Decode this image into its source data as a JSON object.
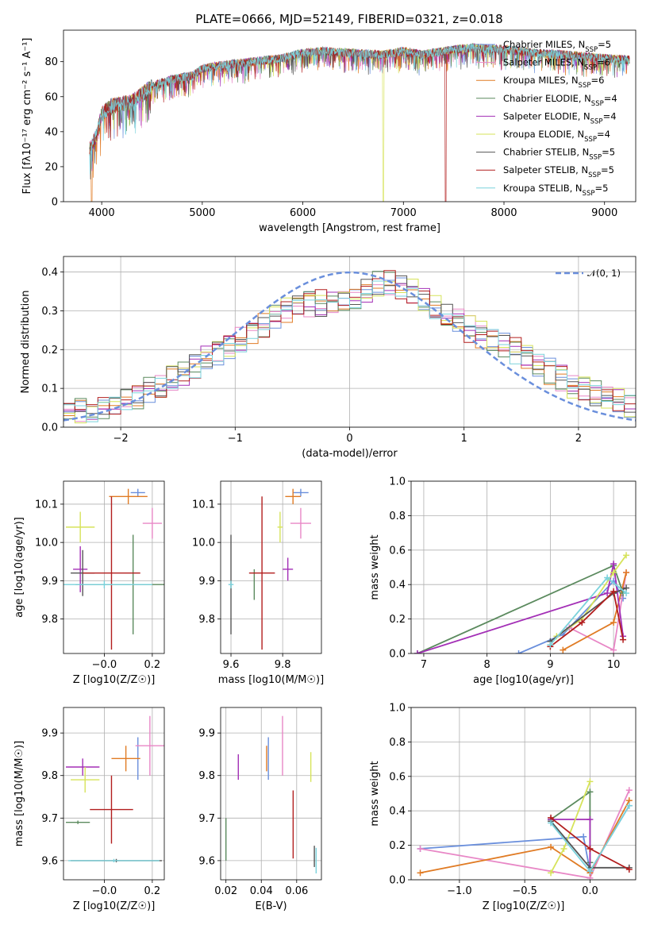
{
  "figure_title": "PLATE=0666, MJD=52149, FIBERID=0321, z=0.018",
  "colors": {
    "Chabrier MILES": "#6a8fdc",
    "Salpeter MILES": "#e887c6",
    "Kroupa MILES": "#e07b24",
    "Chabrier ELODIE": "#5b8a5e",
    "Salpeter ELODIE": "#a32fb6",
    "Kroupa ELODIE": "#d6e35a",
    "Chabrier STELIB": "#555555",
    "Salpeter STELIB": "#b21e1e",
    "Kroupa STELIB": "#7ad2dc"
  },
  "chart_data": [
    {
      "id": "spectrum",
      "type": "line",
      "title": "PLATE=0666, MJD=52149, FIBERID=0321, z=0.018",
      "xlabel": "wavelength [Angstrom, rest frame]",
      "ylabel": "Flux [f_λ 10^-17 erg cm^-2 s^-1 A^-1]",
      "xlim": [
        3620,
        9310
      ],
      "ylim": [
        0,
        98
      ],
      "xticks": [
        "4000",
        "5000",
        "6000",
        "7000",
        "8000",
        "9000"
      ],
      "yticks": [
        "0",
        "20",
        "40",
        "60",
        "80"
      ],
      "grid": false,
      "legend": "right",
      "legend_entries": [
        "Chabrier MILES, N_SSP=5",
        "Salpeter MILES, N_SSP=6",
        "Kroupa MILES, N_SSP=6",
        "Chabrier ELODIE, N_SSP=4",
        "Salpeter ELODIE, N_SSP=4",
        "Kroupa ELODIE, N_SSP=4",
        "Chabrier STELIB, N_SSP=5",
        "Salpeter STELIB, N_SSP=5",
        "Kroupa STELIB, N_SSP=5"
      ],
      "continuum_knots": [
        [
          3880,
          30
        ],
        [
          3950,
          38
        ],
        [
          4000,
          50
        ],
        [
          4100,
          55
        ],
        [
          4300,
          57
        ],
        [
          4500,
          66
        ],
        [
          4700,
          70
        ],
        [
          4900,
          72
        ],
        [
          5000,
          76
        ],
        [
          5200,
          78
        ],
        [
          5500,
          80
        ],
        [
          5800,
          82
        ],
        [
          6000,
          85
        ],
        [
          6200,
          86
        ],
        [
          6500,
          85
        ],
        [
          6800,
          84
        ],
        [
          7000,
          86
        ],
        [
          7200,
          84
        ],
        [
          7500,
          87
        ],
        [
          7700,
          88
        ],
        [
          8000,
          87
        ],
        [
          8300,
          85
        ],
        [
          8600,
          84
        ],
        [
          9000,
          82
        ],
        [
          9250,
          81
        ]
      ],
      "drop_features": [
        {
          "model": "Kroupa ELODIE",
          "x": 6800
        },
        {
          "model": "Salpeter STELIB",
          "x": 7420
        },
        {
          "model": "Kroupa MILES",
          "x": 3900
        }
      ]
    },
    {
      "id": "residuals",
      "type": "line",
      "xlabel": "(data-model)/error",
      "ylabel": "Normed distribution",
      "xlim": [
        -2.5,
        2.5
      ],
      "ylim": [
        0,
        0.44
      ],
      "xticks": [
        "−2",
        "−1",
        "0",
        "1",
        "2"
      ],
      "yticks": [
        "0.0",
        "0.1",
        "0.2",
        "0.3",
        "0.4"
      ],
      "grid": true,
      "legend": "top-right",
      "legend_label": "𝒩(0, 1)",
      "reference_curve": {
        "name": "𝒩(0, 1)",
        "mu": 0,
        "sigma": 1
      },
      "bin_width": 0.1,
      "histogram_envelope": [
        [
          -2.5,
          0.03
        ],
        [
          -2,
          0.06
        ],
        [
          -1.5,
          0.13
        ],
        [
          -1,
          0.22
        ],
        [
          -0.5,
          0.31
        ],
        [
          0,
          0.33
        ],
        [
          0.3,
          0.38
        ],
        [
          0.5,
          0.36
        ],
        [
          0.8,
          0.3
        ],
        [
          1,
          0.26
        ],
        [
          1.5,
          0.19
        ],
        [
          2,
          0.1
        ],
        [
          2.5,
          0.05
        ]
      ]
    },
    {
      "id": "age_vs_Z",
      "type": "scatter",
      "xlabel": "Z [log10(Z/Z☉)]",
      "ylabel": "age  [log10(age/yr)]",
      "xlim": [
        -0.17,
        0.25
      ],
      "ylim": [
        9.71,
        10.16
      ],
      "xticks": [
        "−0.0",
        "0.2"
      ],
      "yticks": [
        "9.8",
        "9.9",
        "10.0",
        "10.1"
      ],
      "grid": true,
      "points": [
        {
          "model": "Chabrier MILES",
          "x": 0.14,
          "y": 10.13,
          "xerr": 0.03,
          "yerr": 0.01
        },
        {
          "model": "Salpeter MILES",
          "x": 0.2,
          "y": 10.05,
          "xerr": 0.04,
          "yerr": 0.04
        },
        {
          "model": "Kroupa MILES",
          "x": 0.1,
          "y": 10.12,
          "xerr": 0.08,
          "yerr": 0.02
        },
        {
          "model": "Chabrier ELODIE",
          "x": 0.12,
          "y": 9.89,
          "xerr": 0.24,
          "yerr": 0.13
        },
        {
          "model": "Salpeter ELODIE",
          "x": -0.1,
          "y": 9.93,
          "xerr": 0.03,
          "yerr": 0.06
        },
        {
          "model": "Kroupa ELODIE",
          "x": -0.1,
          "y": 10.04,
          "xerr": 0.06,
          "yerr": 0.04
        },
        {
          "model": "Chabrier STELIB",
          "x": -0.09,
          "y": 9.92,
          "xerr": 0.05,
          "yerr": 0.06
        },
        {
          "model": "Salpeter STELIB",
          "x": 0.03,
          "y": 9.92,
          "xerr": 0.12,
          "yerr": 0.2
        },
        {
          "model": "Kroupa STELIB",
          "x": 0.0,
          "y": 9.89,
          "xerr": 0.2,
          "yerr": 0.01
        }
      ]
    },
    {
      "id": "age_vs_mass",
      "type": "scatter",
      "xlabel": "mass [log10(M/M☉)]",
      "ylabel": "",
      "xlim": [
        9.56,
        9.95
      ],
      "ylim": [
        9.71,
        10.16
      ],
      "xticks": [
        "9.6",
        "9.8"
      ],
      "yticks": [
        "9.8",
        "9.9",
        "10.0",
        "10.1"
      ],
      "grid": true,
      "points": [
        {
          "model": "Chabrier MILES",
          "x": 9.87,
          "y": 10.13,
          "xerr": 0.03,
          "yerr": 0.01
        },
        {
          "model": "Salpeter MILES",
          "x": 9.87,
          "y": 10.05,
          "xerr": 0.04,
          "yerr": 0.04
        },
        {
          "model": "Kroupa MILES",
          "x": 9.84,
          "y": 10.12,
          "xerr": 0.03,
          "yerr": 0.02
        },
        {
          "model": "Chabrier ELODIE",
          "x": 9.69,
          "y": 9.89,
          "xerr": 0.0,
          "yerr": 0.04
        },
        {
          "model": "Salpeter ELODIE",
          "x": 9.82,
          "y": 9.93,
          "xerr": 0.02,
          "yerr": 0.03
        },
        {
          "model": "Kroupa ELODIE",
          "x": 9.79,
          "y": 10.04,
          "xerr": 0.01,
          "yerr": 0.04
        },
        {
          "model": "Chabrier STELIB",
          "x": 9.6,
          "y": 9.89,
          "xerr": 0.0,
          "yerr": 0.13
        },
        {
          "model": "Salpeter STELIB",
          "x": 9.72,
          "y": 9.92,
          "xerr": 0.05,
          "yerr": 0.2
        },
        {
          "model": "Kroupa STELIB",
          "x": 9.6,
          "y": 9.89,
          "xerr": 0.01,
          "yerr": 0.01
        }
      ]
    },
    {
      "id": "massweight_vs_age",
      "type": "line",
      "xlabel": "age  [log10(age/yr)]",
      "ylabel": "mass weight",
      "xlim": [
        6.8,
        10.35
      ],
      "ylim": [
        0,
        1.0
      ],
      "xticks": [
        "7",
        "8",
        "9",
        "10"
      ],
      "yticks": [
        "0.0",
        "0.2",
        "0.4",
        "0.6",
        "0.8",
        "1.0"
      ],
      "grid": true,
      "series": [
        {
          "name": "Chabrier MILES",
          "x": [
            8.5,
            9.2,
            10.0,
            10.15
          ],
          "y": [
            0.0,
            0.11,
            0.42,
            0.32
          ]
        },
        {
          "name": "Salpeter MILES",
          "x": [
            9.3,
            10.0,
            10.2
          ],
          "y": [
            0.15,
            0.02,
            0.47
          ]
        },
        {
          "name": "Kroupa MILES",
          "x": [
            9.2,
            10.0,
            10.2
          ],
          "y": [
            0.02,
            0.18,
            0.47
          ]
        },
        {
          "name": "Chabrier ELODIE",
          "x": [
            6.9,
            10.0,
            10.15
          ],
          "y": [
            0.0,
            0.51,
            0.35
          ]
        },
        {
          "name": "Salpeter ELODIE",
          "x": [
            6.9,
            9.9,
            10.0,
            10.15
          ],
          "y": [
            0.0,
            0.35,
            0.52,
            0.1
          ]
        },
        {
          "name": "Kroupa ELODIE",
          "x": [
            9.1,
            9.5,
            10.0,
            10.2
          ],
          "y": [
            0.1,
            0.2,
            0.47,
            0.57
          ]
        },
        {
          "name": "Chabrier STELIB",
          "x": [
            9.0,
            10.0,
            10.2
          ],
          "y": [
            0.07,
            0.35,
            0.38
          ]
        },
        {
          "name": "Salpeter STELIB",
          "x": [
            9.0,
            9.5,
            10.0,
            10.15
          ],
          "y": [
            0.04,
            0.18,
            0.36,
            0.08
          ]
        },
        {
          "name": "Kroupa STELIB",
          "x": [
            9.0,
            9.9,
            10.2
          ],
          "y": [
            0.05,
            0.44,
            0.35
          ]
        }
      ]
    },
    {
      "id": "mass_vs_Z",
      "type": "scatter",
      "xlabel": "Z [log10(Z/Z☉)]",
      "ylabel": "mass [log10(M/M☉)]",
      "xlim": [
        -0.17,
        0.25
      ],
      "ylim": [
        9.555,
        9.96
      ],
      "xticks": [
        "−0.0",
        "0.2"
      ],
      "yticks": [
        "9.6",
        "9.7",
        "9.8",
        "9.9"
      ],
      "grid": true,
      "points": [
        {
          "model": "Chabrier MILES",
          "x": 0.14,
          "y": 9.84,
          "xerr": 0.0,
          "yerr": 0.05
        },
        {
          "model": "Salpeter MILES",
          "x": 0.19,
          "y": 9.87,
          "xerr": 0.06,
          "yerr": 0.07
        },
        {
          "model": "Kroupa MILES",
          "x": 0.09,
          "y": 9.84,
          "xerr": 0.06,
          "yerr": 0.03
        },
        {
          "model": "Chabrier ELODIE",
          "x": -0.11,
          "y": 9.69,
          "xerr": 0.05,
          "yerr": 0.0
        },
        {
          "model": "Salpeter ELODIE",
          "x": -0.09,
          "y": 9.82,
          "xerr": 0.07,
          "yerr": 0.02
        },
        {
          "model": "Kroupa ELODIE",
          "x": -0.08,
          "y": 9.79,
          "xerr": 0.06,
          "yerr": 0.03
        },
        {
          "model": "Chabrier STELIB",
          "x": 0.05,
          "y": 9.6,
          "xerr": 0.19,
          "yerr": 0.0
        },
        {
          "model": "Salpeter STELIB",
          "x": 0.03,
          "y": 9.72,
          "xerr": 0.09,
          "yerr": 0.08
        },
        {
          "model": "Kroupa STELIB",
          "x": 0.04,
          "y": 9.6,
          "xerr": 0.19,
          "yerr": 0.0
        }
      ]
    },
    {
      "id": "mass_vs_EBV",
      "type": "scatter",
      "xlabel": "E(B-V)",
      "ylabel": "",
      "xlim": [
        0.017,
        0.074
      ],
      "ylim": [
        9.555,
        9.96
      ],
      "xticks": [
        "0.02",
        "0.04",
        "0.06"
      ],
      "yticks": [
        "9.6",
        "9.7",
        "9.8",
        "9.9"
      ],
      "grid": true,
      "points": [
        {
          "model": "Chabrier MILES",
          "x": 0.044,
          "y": 9.84,
          "xerr": 0.0,
          "yerr": 0.05
        },
        {
          "model": "Salpeter MILES",
          "x": 0.052,
          "y": 9.87,
          "xerr": 0.0,
          "yerr": 0.07
        },
        {
          "model": "Kroupa MILES",
          "x": 0.043,
          "y": 9.84,
          "xerr": 0.0,
          "yerr": 0.03
        },
        {
          "model": "Chabrier ELODIE",
          "x": 0.02,
          "y": 9.65,
          "xerr": 0.0,
          "yerr": 0.05
        },
        {
          "model": "Salpeter ELODIE",
          "x": 0.027,
          "y": 9.82,
          "xerr": 0.0,
          "yerr": 0.03
        },
        {
          "model": "Kroupa ELODIE",
          "x": 0.068,
          "y": 9.82,
          "xerr": 0.0,
          "yerr": 0.035
        },
        {
          "model": "Chabrier STELIB",
          "x": 0.07,
          "y": 9.61,
          "xerr": 0.0,
          "yerr": 0.025
        },
        {
          "model": "Salpeter STELIB",
          "x": 0.058,
          "y": 9.685,
          "xerr": 0.0,
          "yerr": 0.08
        },
        {
          "model": "Kroupa STELIB",
          "x": 0.071,
          "y": 9.6,
          "xerr": 0.0,
          "yerr": 0.03
        }
      ]
    },
    {
      "id": "massweight_vs_Z",
      "type": "line",
      "xlabel": "Z [log10(Z/Z☉)]",
      "ylabel": "mass weight",
      "xlim": [
        -1.37,
        0.35
      ],
      "ylim": [
        0,
        1.0
      ],
      "xticks": [
        "−1.0",
        "−0.5",
        "0.0"
      ],
      "yticks": [
        "0.0",
        "0.2",
        "0.4",
        "0.6",
        "0.8",
        "1.0"
      ],
      "grid": true,
      "series": [
        {
          "name": "Chabrier MILES",
          "x": [
            -1.3,
            -0.05,
            0.0,
            0.3
          ],
          "y": [
            0.18,
            0.25,
            0.05,
            0.43
          ]
        },
        {
          "name": "Salpeter MILES",
          "x": [
            -1.3,
            0.0,
            0.3
          ],
          "y": [
            0.18,
            0.01,
            0.52
          ]
        },
        {
          "name": "Kroupa MILES",
          "x": [
            -1.3,
            -0.3,
            0.0,
            0.3
          ],
          "y": [
            0.04,
            0.19,
            0.04,
            0.46
          ]
        },
        {
          "name": "Chabrier ELODIE",
          "x": [
            -0.3,
            0.0,
            0.0
          ],
          "y": [
            0.35,
            0.51,
            0.1
          ]
        },
        {
          "name": "Salpeter ELODIE",
          "x": [
            -0.3,
            0.0,
            0.0
          ],
          "y": [
            0.35,
            0.35,
            0.05
          ]
        },
        {
          "name": "Kroupa ELODIE",
          "x": [
            -0.3,
            -0.2,
            0.0
          ],
          "y": [
            0.04,
            0.18,
            0.57
          ]
        },
        {
          "name": "Chabrier STELIB",
          "x": [
            -0.3,
            0.0,
            0.3
          ],
          "y": [
            0.34,
            0.07,
            0.07
          ]
        },
        {
          "name": "Salpeter STELIB",
          "x": [
            -0.3,
            0.0,
            0.3
          ],
          "y": [
            0.36,
            0.18,
            0.06
          ]
        },
        {
          "name": "Kroupa STELIB",
          "x": [
            -0.3,
            0.0,
            0.3
          ],
          "y": [
            0.33,
            0.05,
            0.43
          ]
        }
      ]
    }
  ]
}
